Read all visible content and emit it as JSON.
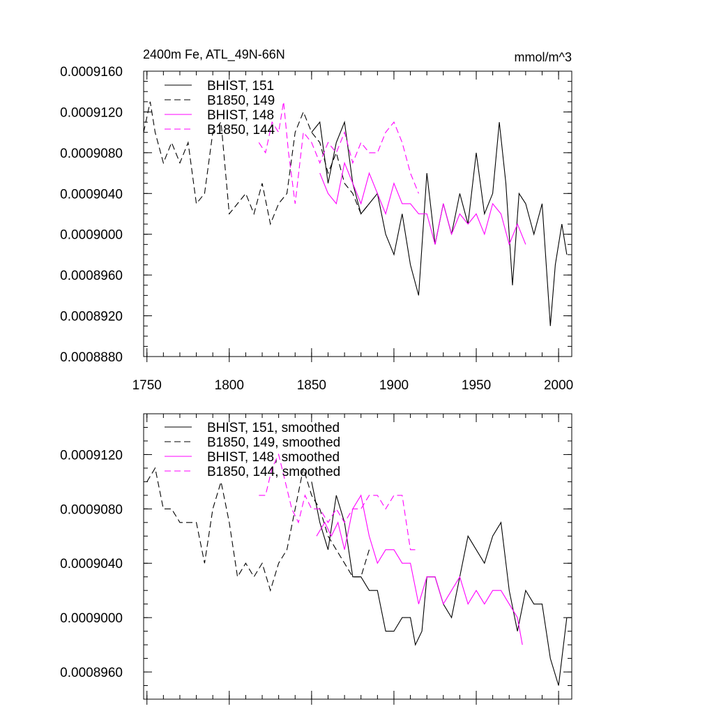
{
  "chart_data": [
    {
      "type": "line",
      "title": "2400m Fe, ATL_49N-66N",
      "units_label": "mmol/m^3",
      "xlabel": "",
      "ylabel": "",
      "xlim": [
        1748,
        2008
      ],
      "ylim": [
        0.000888,
        0.000916
      ],
      "x_ticks": [
        1750,
        1800,
        1850,
        1900,
        1950,
        2000
      ],
      "x_tick_labels": [
        "1750",
        "1800",
        "1850",
        "1900",
        "1950",
        "2000"
      ],
      "y_ticks": [
        0.000888,
        0.000892,
        0.000896,
        0.0009,
        0.000904,
        0.000908,
        0.000912,
        0.000916
      ],
      "y_tick_labels": [
        "0.0008880",
        "0.0008920",
        "0.0008960",
        "0.0009000",
        "0.0009040",
        "0.0009080",
        "0.0009120",
        "0.0009160"
      ],
      "legend_position": "top-left",
      "grid": false,
      "series": [
        {
          "name": "BHIST, 151",
          "color": "#000000",
          "dash": "solid",
          "x": [
            1850,
            1855,
            1860,
            1865,
            1870,
            1875,
            1880,
            1885,
            1890,
            1895,
            1900,
            1905,
            1910,
            1915,
            1920,
            1925,
            1930,
            1935,
            1940,
            1945,
            1950,
            1955,
            1960,
            1964,
            1968,
            1972,
            1976,
            1980,
            1985,
            1990,
            1995,
            1998,
            2002,
            2005
          ],
          "values": [
            0.00091,
            0.000911,
            0.000905,
            0.000909,
            0.000911,
            0.000905,
            0.000902,
            0.000903,
            0.000904,
            0.0009,
            0.000898,
            0.000902,
            0.000897,
            0.000894,
            0.000906,
            0.000899,
            0.000903,
            0.0009,
            0.000904,
            0.000901,
            0.000908,
            0.000902,
            0.000904,
            0.000911,
            0.000905,
            0.000895,
            0.000904,
            0.000903,
            0.0009,
            0.000903,
            0.000891,
            0.000897,
            0.000901,
            0.000898
          ]
        },
        {
          "name": "B1850, 149",
          "color": "#000000",
          "dash": "dashed",
          "x": [
            1748,
            1752,
            1755,
            1760,
            1765,
            1770,
            1775,
            1780,
            1785,
            1790,
            1795,
            1800,
            1805,
            1810,
            1815,
            1820,
            1825,
            1830,
            1835,
            1840,
            1845,
            1850,
            1855,
            1860,
            1865,
            1870,
            1875,
            1880,
            1885
          ],
          "values": [
            0.00091,
            0.000913,
            0.00091,
            0.000907,
            0.000909,
            0.000907,
            0.000909,
            0.000903,
            0.000904,
            0.00091,
            0.000911,
            0.000902,
            0.000903,
            0.000904,
            0.000902,
            0.000905,
            0.000901,
            0.000903,
            0.000904,
            0.00091,
            0.000912,
            0.00091,
            0.000909,
            0.000906,
            0.000908,
            0.000905,
            0.000904,
            0.000902,
            0.000903
          ]
        },
        {
          "name": "BHIST, 148",
          "color": "#ff00ff",
          "dash": "solid",
          "x": [
            1855,
            1860,
            1865,
            1870,
            1875,
            1880,
            1885,
            1890,
            1895,
            1900,
            1905,
            1910,
            1915,
            1920,
            1925,
            1930,
            1935,
            1940,
            1945,
            1950,
            1955,
            1960,
            1965,
            1970,
            1975,
            1980
          ],
          "values": [
            0.000906,
            0.000904,
            0.000903,
            0.000907,
            0.000905,
            0.000903,
            0.000906,
            0.000904,
            0.000902,
            0.000905,
            0.000903,
            0.000903,
            0.000902,
            0.000902,
            0.000899,
            0.000903,
            0.0009,
            0.000902,
            0.000901,
            0.000902,
            0.0009,
            0.000903,
            0.000902,
            0.000899,
            0.000901,
            0.000899
          ]
        },
        {
          "name": "B1850, 144",
          "color": "#ff00ff",
          "dash": "dashed",
          "x": [
            1818,
            1822,
            1826,
            1830,
            1833,
            1836,
            1840,
            1845,
            1850,
            1855,
            1860,
            1865,
            1870,
            1875,
            1880,
            1885,
            1890,
            1895,
            1900,
            1905,
            1910,
            1915
          ],
          "values": [
            0.000909,
            0.000908,
            0.000911,
            0.00091,
            0.000913,
            0.000908,
            0.000903,
            0.00091,
            0.000909,
            0.000907,
            0.000909,
            0.000908,
            0.00091,
            0.000907,
            0.000909,
            0.000908,
            0.000908,
            0.00091,
            0.000911,
            0.000909,
            0.000906,
            0.000904
          ]
        }
      ]
    },
    {
      "type": "line",
      "title": "",
      "xlabel": "",
      "ylabel": "",
      "xlim": [
        1748,
        2008
      ],
      "ylim": [
        0.000894,
        0.000915
      ],
      "x_ticks": [
        1750,
        1800,
        1850,
        1900,
        1950,
        2000
      ],
      "y_ticks": [
        0.000896,
        0.0009,
        0.000904,
        0.000908,
        0.000912
      ],
      "y_tick_labels": [
        "0.0008960",
        "0.0009000",
        "0.0009040",
        "0.0009080",
        "0.0009120"
      ],
      "legend_position": "top-left",
      "grid": false,
      "series": [
        {
          "name": "BHIST, 151, smoothed",
          "color": "#000000",
          "dash": "solid",
          "x": [
            1850,
            1855,
            1860,
            1865,
            1870,
            1875,
            1880,
            1885,
            1890,
            1895,
            1900,
            1905,
            1910,
            1913,
            1917,
            1920,
            1925,
            1930,
            1935,
            1940,
            1945,
            1950,
            1955,
            1960,
            1965,
            1970,
            1975,
            1980,
            1985,
            1990,
            1995,
            2000,
            2005
          ],
          "values": [
            0.00091,
            0.000907,
            0.000905,
            0.000909,
            0.000907,
            0.000903,
            0.000903,
            0.000902,
            0.000902,
            0.000899,
            0.000899,
            0.0009,
            0.0009,
            0.000898,
            0.000899,
            0.000903,
            0.000903,
            0.000901,
            0.0009,
            0.000903,
            0.000906,
            0.000905,
            0.000904,
            0.000906,
            0.000907,
            0.000902,
            0.000899,
            0.000902,
            0.000901,
            0.000901,
            0.000897,
            0.000895,
            0.0009
          ]
        },
        {
          "name": "B1850, 149, smoothed",
          "color": "#000000",
          "dash": "dashed",
          "x": [
            1750,
            1755,
            1760,
            1765,
            1770,
            1775,
            1780,
            1785,
            1790,
            1795,
            1800,
            1805,
            1810,
            1815,
            1820,
            1825,
            1830,
            1835,
            1840,
            1845,
            1850,
            1855,
            1860,
            1865,
            1870,
            1875,
            1880,
            1885
          ],
          "values": [
            0.00091,
            0.000911,
            0.000908,
            0.000908,
            0.000907,
            0.000907,
            0.000907,
            0.000904,
            0.000908,
            0.00091,
            0.000907,
            0.000903,
            0.000904,
            0.000903,
            0.000904,
            0.000902,
            0.000904,
            0.000905,
            0.000908,
            0.000911,
            0.000909,
            0.000908,
            0.000906,
            0.000905,
            0.000904,
            0.000903,
            0.000903,
            0.000905
          ]
        },
        {
          "name": "BHIST, 148, smoothed",
          "color": "#ff00ff",
          "dash": "solid",
          "x": [
            1853,
            1858,
            1862,
            1866,
            1870,
            1875,
            1880,
            1885,
            1890,
            1895,
            1900,
            1905,
            1910,
            1915,
            1920,
            1925,
            1930,
            1935,
            1940,
            1945,
            1950,
            1955,
            1960,
            1965,
            1970,
            1975,
            1978
          ],
          "values": [
            0.000906,
            0.000907,
            0.000906,
            0.000907,
            0.000905,
            0.000908,
            0.000909,
            0.000906,
            0.000904,
            0.000905,
            0.000905,
            0.000904,
            0.000904,
            0.000901,
            0.000903,
            0.000903,
            0.000901,
            0.000902,
            0.000903,
            0.000901,
            0.000902,
            0.000901,
            0.000902,
            0.000902,
            0.000901,
            0.0009,
            0.000898
          ]
        },
        {
          "name": "B1850, 144, smoothed",
          "color": "#ff00ff",
          "dash": "dashed",
          "x": [
            1818,
            1822,
            1826,
            1830,
            1834,
            1838,
            1842,
            1846,
            1850,
            1855,
            1860,
            1865,
            1870,
            1875,
            1880,
            1885,
            1890,
            1895,
            1900,
            1905,
            1910,
            1915
          ],
          "values": [
            0.000909,
            0.000909,
            0.000911,
            0.000912,
            0.00091,
            0.000908,
            0.000907,
            0.000909,
            0.000908,
            0.000908,
            0.000907,
            0.000908,
            0.000907,
            0.000908,
            0.000908,
            0.000909,
            0.000909,
            0.000908,
            0.000909,
            0.000909,
            0.000905,
            0.000905
          ]
        }
      ]
    }
  ]
}
